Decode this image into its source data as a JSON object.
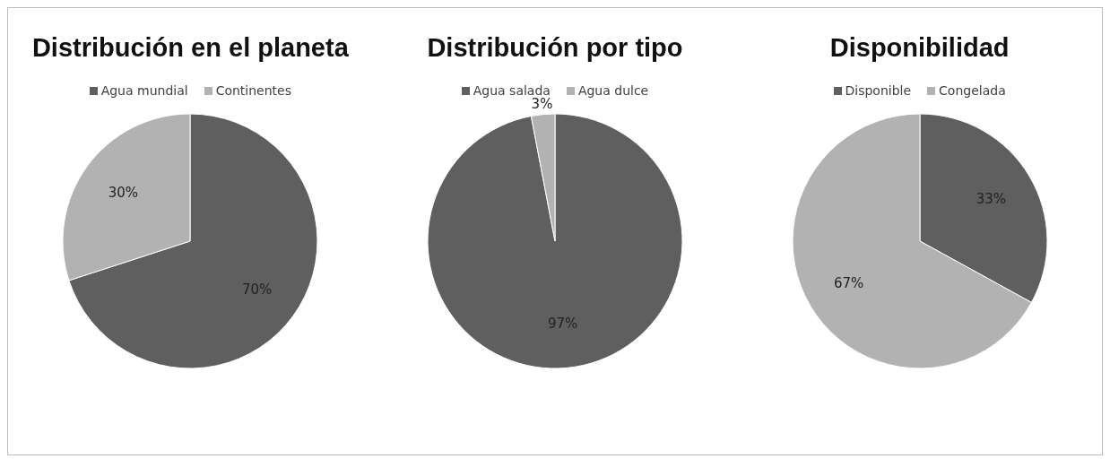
{
  "chart_data": [
    {
      "type": "pie",
      "title": "Distribución en el planeta",
      "categories": [
        "Agua mundial",
        "Continentes"
      ],
      "values": [
        70,
        30
      ],
      "colors": [
        "#5f5f5f",
        "#b2b2b2"
      ],
      "value_labels": [
        "70%",
        "30%"
      ],
      "legend": "top"
    },
    {
      "type": "pie",
      "title": "Distribución por tipo",
      "categories": [
        "Agua salada",
        "Agua dulce"
      ],
      "values": [
        97,
        3
      ],
      "colors": [
        "#5f5f5f",
        "#b2b2b2"
      ],
      "value_labels": [
        "97%",
        "3%"
      ],
      "legend": "top"
    },
    {
      "type": "pie",
      "title": "Disponibilidad",
      "categories": [
        "Disponible",
        "Congelada"
      ],
      "values": [
        33,
        67
      ],
      "colors": [
        "#5f5f5f",
        "#b2b2b2"
      ],
      "value_labels": [
        "33%",
        "67%"
      ],
      "legend": "top"
    }
  ]
}
